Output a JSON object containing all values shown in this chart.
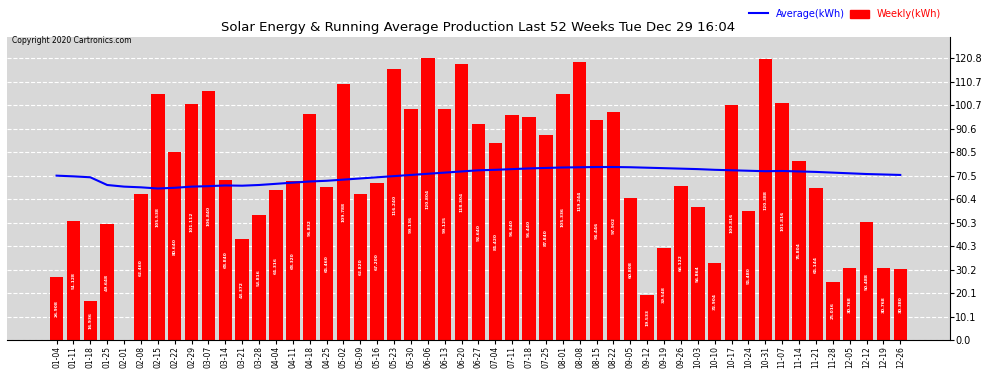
{
  "title": "Solar Energy & Running Average Production Last 52 Weeks Tue Dec 29 16:04",
  "copyright": "Copyright 2020 Cartronics.com",
  "legend_labels": [
    "Average(kWh)",
    "Weekly(kWh)"
  ],
  "bar_color": "#ff0000",
  "avg_line_color": "#0000ff",
  "background_color": "#ffffff",
  "plot_bg_color": "#d8d8d8",
  "grid_color": "#ffffff",
  "ylim": [
    0,
    130
  ],
  "yticks": [
    0.0,
    10.1,
    20.1,
    30.2,
    40.3,
    50.3,
    60.4,
    70.5,
    80.5,
    90.6,
    100.7,
    110.7,
    120.8
  ],
  "categories": [
    "01-04",
    "01-11",
    "01-18",
    "01-25",
    "02-01",
    "02-08",
    "02-15",
    "02-22",
    "02-29",
    "03-07",
    "03-14",
    "03-21",
    "03-28",
    "04-04",
    "04-11",
    "04-18",
    "04-25",
    "05-02",
    "05-09",
    "05-16",
    "05-23",
    "05-30",
    "06-06",
    "06-13",
    "06-20",
    "06-27",
    "07-04",
    "07-11",
    "07-18",
    "07-25",
    "08-01",
    "08-08",
    "08-15",
    "08-22",
    "09-05",
    "09-12",
    "09-19",
    "09-26",
    "10-03",
    "10-10",
    "10-17",
    "10-24",
    "10-31",
    "11-07",
    "11-14",
    "11-21",
    "11-28",
    "12-05",
    "12-12",
    "12-19",
    "12-26"
  ],
  "weekly_values": [
    26.908,
    51.128,
    16.936,
    49.648,
    0.096,
    62.46,
    105.538,
    80.64,
    101.112,
    106.84,
    68.84,
    43.372,
    53.816,
    64.316,
    68.32,
    96.832,
    65.46,
    109.788,
    62.82,
    67.2,
    116.24,
    99.136,
    120.804,
    99.125,
    118.304,
    92.64,
    84.42,
    96.64,
    95.44,
    87.84,
    105.336,
    119.244,
    94.446,
    97.902,
    60.808,
    19.533,
    39.548,
    66.122,
    56.864,
    32.904,
    100.816,
    55.48,
    120.388,
    101.816,
    76.804,
    65.144,
    25.016,
    30.768,
    50.488,
    30.768,
    30.38
  ],
  "avg_values": [
    70.5,
    70.2,
    69.8,
    66.5,
    65.8,
    65.5,
    65.0,
    65.3,
    65.8,
    66.0,
    66.3,
    66.2,
    66.5,
    67.0,
    67.5,
    68.0,
    68.3,
    68.8,
    69.3,
    69.8,
    70.3,
    70.8,
    71.3,
    71.8,
    72.3,
    72.8,
    73.0,
    73.3,
    73.6,
    73.8,
    74.0,
    74.1,
    74.2,
    74.2,
    74.1,
    73.9,
    73.7,
    73.5,
    73.3,
    73.0,
    72.8,
    72.6,
    72.4,
    72.5,
    72.3,
    72.1,
    71.8,
    71.5,
    71.2,
    71.0,
    70.8
  ]
}
